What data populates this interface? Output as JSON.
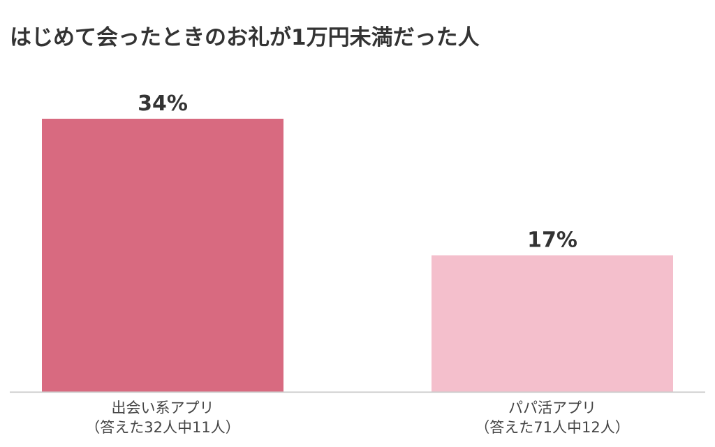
{
  "chart_data": {
    "type": "bar",
    "title": "はじめて会ったときのお礼が1万円未満だった人",
    "categories": [
      "出会い系アプリ",
      "パパ活アプリ"
    ],
    "category_notes": [
      "（答えた32人中11人）",
      "（答えた71人中12人）"
    ],
    "values": [
      34,
      17
    ],
    "value_labels": [
      "34%",
      "17%"
    ],
    "ylim": [
      0,
      100
    ],
    "xlabel": "",
    "ylabel": "",
    "grid": false,
    "colors": [
      "#d86a80",
      "#f4bfcc"
    ],
    "baseline_color": "#cccccc"
  }
}
